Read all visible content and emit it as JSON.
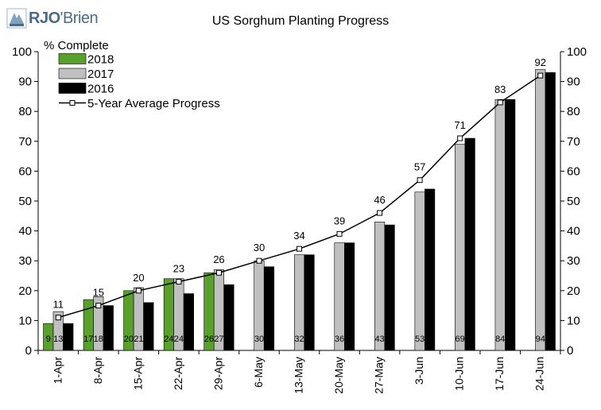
{
  "brand": {
    "name_bold": "RJO",
    "name_rest": "'Brien"
  },
  "chart_data": {
    "type": "bar",
    "title": "US Sorghum Planting Progress",
    "ylabel": "% Complete",
    "ylim": [
      0,
      100
    ],
    "yticks": [
      0,
      10,
      20,
      30,
      40,
      50,
      60,
      70,
      80,
      90,
      100
    ],
    "categories": [
      "1-Apr",
      "8-Apr",
      "15-Apr",
      "22-Apr",
      "29-Apr",
      "6-May",
      "13-May",
      "20-May",
      "27-May",
      "3-Jun",
      "10-Jun",
      "17-Jun",
      "24-Jun"
    ],
    "series": [
      {
        "name": "2018",
        "color": "#5aa02c",
        "values": [
          9,
          17,
          20,
          24,
          26,
          null,
          null,
          null,
          null,
          null,
          null,
          null,
          null
        ]
      },
      {
        "name": "2017",
        "color": "#c0c0c0",
        "values": [
          13,
          18,
          21,
          24,
          27,
          30,
          32,
          36,
          43,
          53,
          69,
          84,
          94
        ]
      },
      {
        "name": "2016",
        "color": "#000000",
        "values": [
          9,
          15,
          16,
          19,
          22,
          28,
          32,
          36,
          42,
          54,
          71,
          84,
          93
        ]
      }
    ],
    "line": {
      "name": "5-Year Average Progress",
      "color": "#000000",
      "values": [
        11,
        15,
        20,
        23,
        26,
        30,
        34,
        39,
        46,
        57,
        71,
        83,
        92
      ]
    },
    "grid": false,
    "legend": "top-left",
    "secondary_y_axis": true
  }
}
